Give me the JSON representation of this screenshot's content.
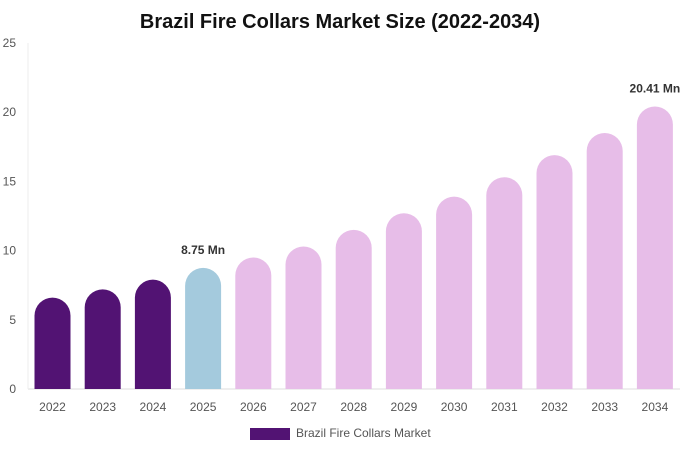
{
  "chart_data": {
    "type": "bar",
    "title": "Brazil Fire Collars Market Size (2022-2034)",
    "xlabel": "",
    "ylabel": "",
    "categories": [
      "2022",
      "2023",
      "2024",
      "2025",
      "2026",
      "2027",
      "2028",
      "2029",
      "2030",
      "2031",
      "2032",
      "2033",
      "2034"
    ],
    "series": [
      {
        "name": "Brazil Fire Collars Market",
        "values": [
          6.6,
          7.2,
          7.9,
          8.75,
          9.5,
          10.3,
          11.5,
          12.7,
          13.9,
          15.3,
          16.9,
          18.5,
          20.41
        ]
      }
    ],
    "ylim": [
      0,
      25
    ],
    "yticks": [
      "0",
      "5",
      "10",
      "15",
      "20",
      "25"
    ],
    "data_labels": [
      {
        "category": "2025",
        "text": "8.75 Mn"
      },
      {
        "category": "2034",
        "text": "20.41 Mn"
      }
    ],
    "bar_colors": {
      "historical": "#521373",
      "current": "#a4cadd",
      "forecast": "#e7bde8"
    },
    "bar_color_groups": [
      "historical",
      "historical",
      "historical",
      "current",
      "forecast",
      "forecast",
      "forecast",
      "forecast",
      "forecast",
      "forecast",
      "forecast",
      "forecast",
      "forecast"
    ],
    "legend": {
      "label": "Brazil Fire Collars Market",
      "color": "#521373",
      "placement": "bottom-center"
    },
    "grid": false
  }
}
